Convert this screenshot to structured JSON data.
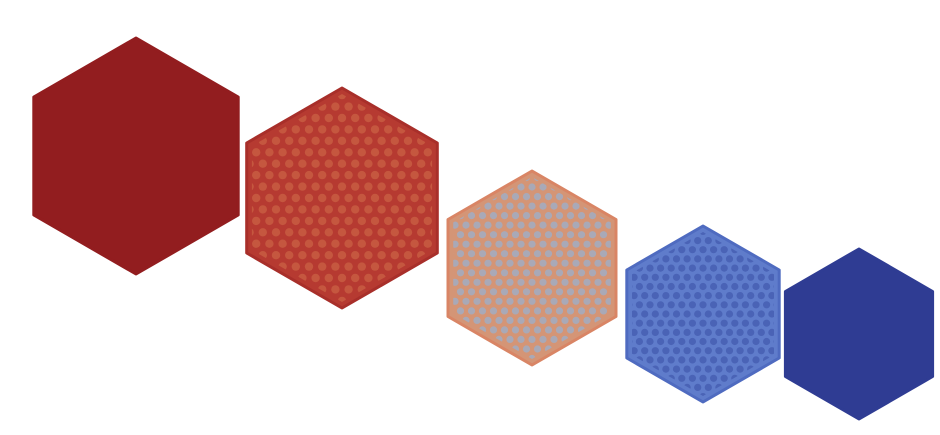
{
  "hexagons": [
    {
      "name": "hexagon-dark-red",
      "fill": "#921d1f",
      "stroke": "#921d1f",
      "dot": null
    },
    {
      "name": "hexagon-red-dots",
      "fill": "#b63a31",
      "stroke": "#a82f2a",
      "dot": "#c5573f"
    },
    {
      "name": "hexagon-salmon-dots",
      "fill": "#d49576",
      "stroke": "#d98565",
      "dot": "#a9a9b7"
    },
    {
      "name": "hexagon-blue-dots",
      "fill": "#5f7ccb",
      "stroke": "#4f6bc0",
      "dot": "#4a63b6"
    },
    {
      "name": "hexagon-navy",
      "fill": "#2f3c93",
      "stroke": "#2f3c93",
      "dot": null
    }
  ]
}
